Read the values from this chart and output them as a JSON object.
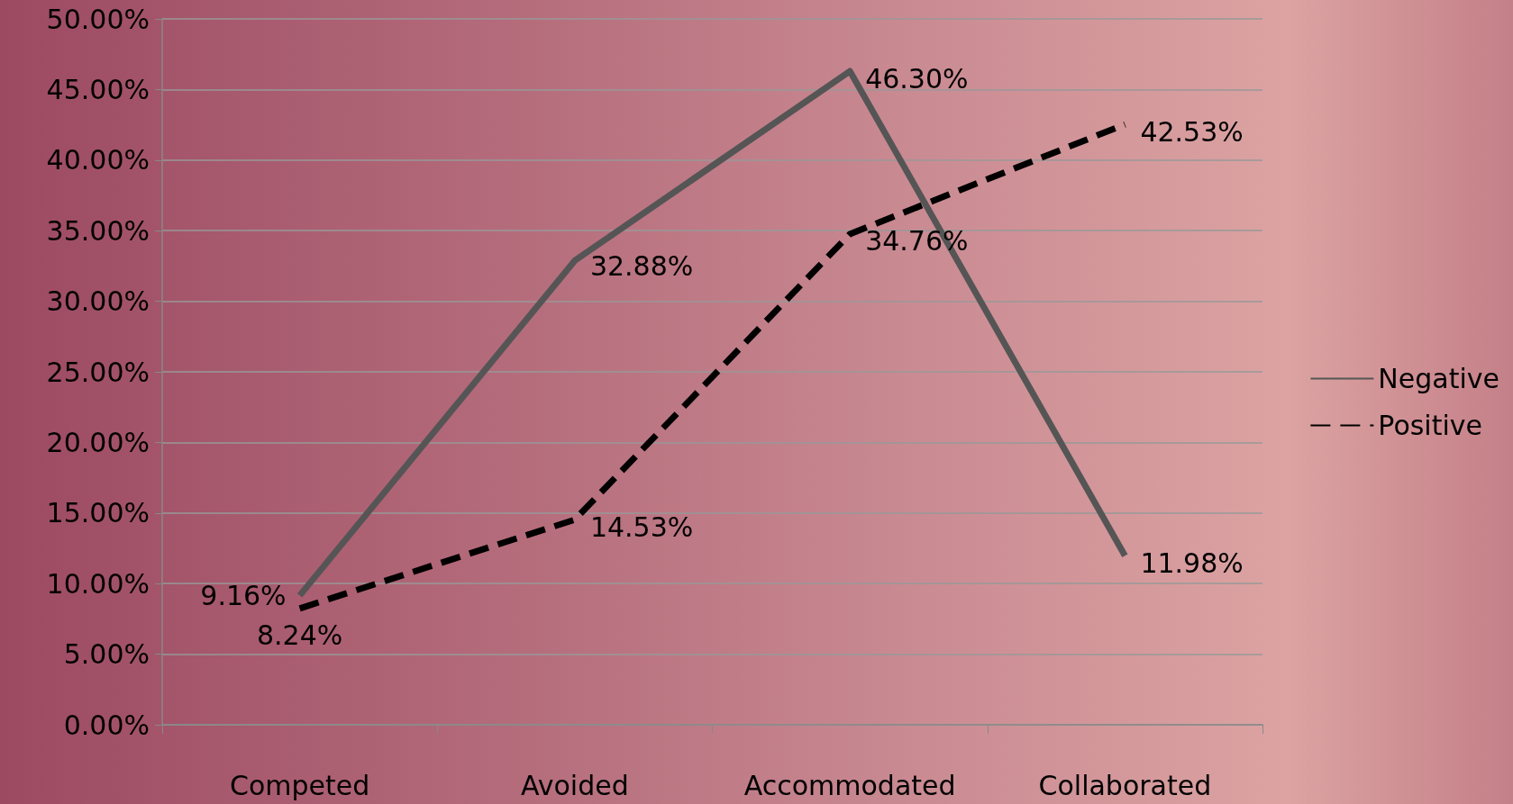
{
  "chart_data": {
    "type": "line",
    "categories": [
      "Competed",
      "Avoided",
      "Accommodated",
      "Collaborated"
    ],
    "series": [
      {
        "name": "Negative",
        "color": "#555555",
        "line_style": "solid",
        "values": [
          9.16,
          32.88,
          46.3,
          11.98
        ],
        "value_labels": [
          "9.16%",
          "32.88%",
          "46.30%",
          "11.98%"
        ]
      },
      {
        "name": "Positive",
        "color": "#000000",
        "line_style": "dashed",
        "values": [
          8.24,
          14.53,
          34.76,
          42.53
        ],
        "value_labels": [
          "8.24%",
          "14.53%",
          "34.76%",
          "42.53%"
        ]
      }
    ],
    "ylim": [
      0,
      50
    ],
    "yticks": [
      {
        "value": 0,
        "label": "0.00%"
      },
      {
        "value": 5,
        "label": "5.00%"
      },
      {
        "value": 10,
        "label": "10.00%"
      },
      {
        "value": 15,
        "label": "15.00%"
      },
      {
        "value": 20,
        "label": "20.00%"
      },
      {
        "value": 25,
        "label": "25.00%"
      },
      {
        "value": 30,
        "label": "30.00%"
      },
      {
        "value": 35,
        "label": "35.00%"
      },
      {
        "value": 40,
        "label": "40.00%"
      },
      {
        "value": 45,
        "label": "45.00%"
      },
      {
        "value": 50,
        "label": "50.00%"
      }
    ],
    "grid": "y",
    "legend": "right",
    "marker": "none"
  }
}
